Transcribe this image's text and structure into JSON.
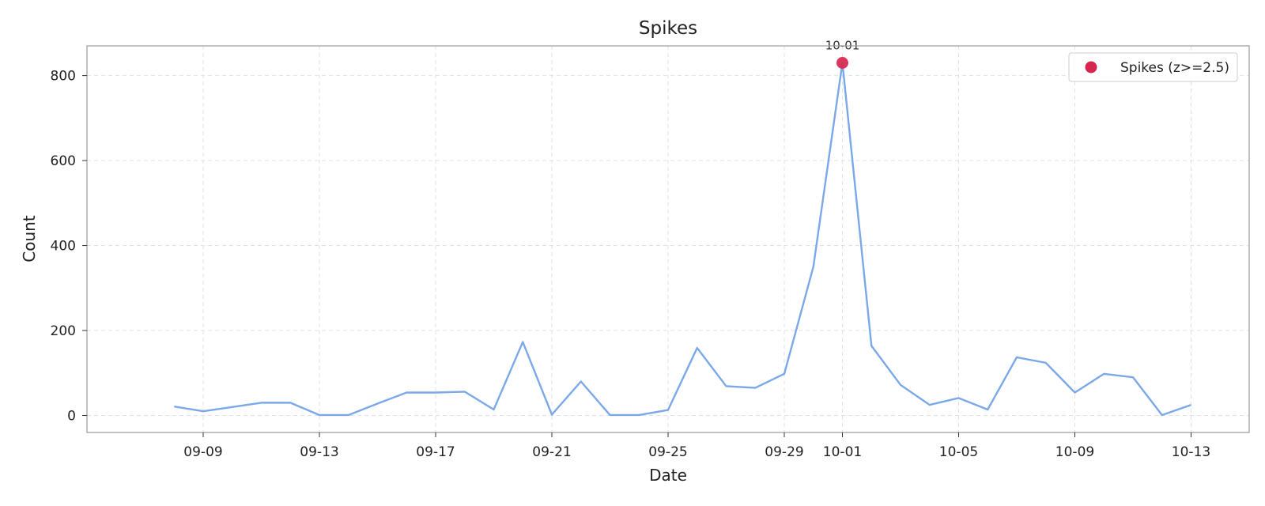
{
  "chart_data": {
    "type": "line",
    "title": "Spikes",
    "xlabel": "Date",
    "ylabel": "Count",
    "x": [
      "2024-09-08",
      "2024-09-09",
      "2024-09-10",
      "2024-09-11",
      "2024-09-12",
      "2024-09-13",
      "2024-09-14",
      "2024-09-15",
      "2024-09-16",
      "2024-09-17",
      "2024-09-18",
      "2024-09-19",
      "2024-09-20",
      "2024-09-21",
      "2024-09-22",
      "2024-09-23",
      "2024-09-24",
      "2024-09-25",
      "2024-09-26",
      "2024-09-27",
      "2024-09-28",
      "2024-09-29",
      "2024-09-30",
      "2024-10-01",
      "2024-10-02",
      "2024-10-03",
      "2024-10-04",
      "2024-10-05",
      "2024-10-06",
      "2024-10-07",
      "2024-10-08",
      "2024-10-09",
      "2024-10-10",
      "2024-10-11",
      "2024-10-12",
      "2024-10-13"
    ],
    "series": [
      {
        "values": [
          21,
          10,
          20,
          30,
          30,
          1,
          1,
          28,
          54,
          54,
          56,
          14,
          173,
          2,
          80,
          1,
          1,
          13,
          159,
          69,
          65,
          98,
          350,
          830,
          164,
          72,
          25,
          41,
          14,
          137,
          124,
          54,
          98,
          90,
          1,
          25
        ],
        "color": "#7aa8e8"
      },
      {
        "name": "Spikes (z>=2.5)",
        "type": "scatter",
        "x": [
          "2024-10-01"
        ],
        "values": [
          830
        ],
        "color": "#d6264f",
        "annotations": [
          "10-01"
        ]
      }
    ],
    "xticks": [
      "09-09",
      "09-13",
      "09-17",
      "09-21",
      "09-25",
      "09-29",
      "10-01",
      "10-05",
      "10-09",
      "10-13"
    ],
    "xtick_dates": [
      "2024-09-09",
      "2024-09-13",
      "2024-09-17",
      "2024-09-21",
      "2024-09-25",
      "2024-09-29",
      "2024-10-01",
      "2024-10-05",
      "2024-10-09",
      "2024-10-13"
    ],
    "yticks": [
      0,
      200,
      400,
      600,
      800
    ],
    "xlim": [
      "2024-09-05",
      "2024-10-15"
    ],
    "ylim": [
      -40,
      870
    ],
    "grid": true,
    "legend_position": "top-right"
  }
}
